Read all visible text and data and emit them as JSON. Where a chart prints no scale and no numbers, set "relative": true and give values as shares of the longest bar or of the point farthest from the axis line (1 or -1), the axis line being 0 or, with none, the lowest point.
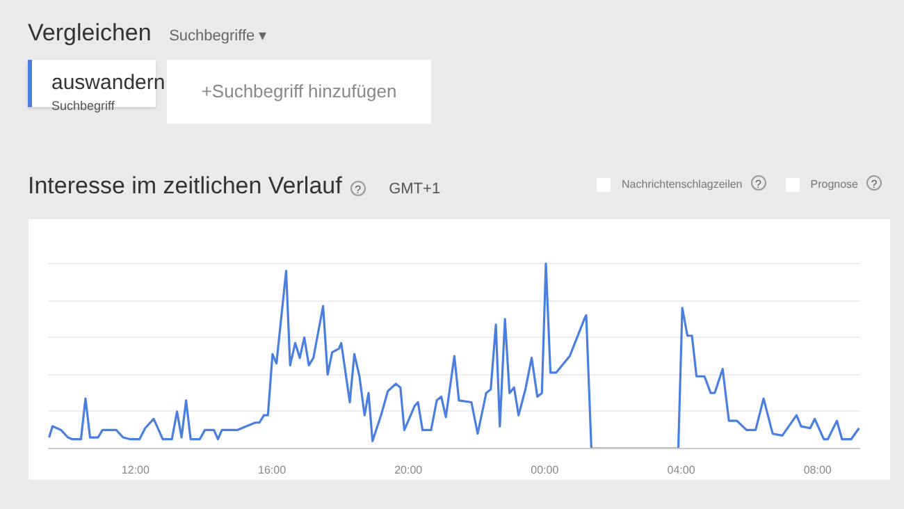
{
  "chart_data": {
    "type": "line",
    "title": "Interesse im zeitlichen Verlauf",
    "subtitle": "GMT+1",
    "annotations": [
      "Vergleichen",
      "Suchbegriffe ▾",
      "Suchbegriff",
      "+Suchbegriff hinzufügen",
      "Nachrichtenschlagzeilen",
      "Prognose",
      "?",
      "?",
      "?"
    ],
    "relative": true,
    "legend": "top left",
    "grid": "y",
    "line_style": "solid",
    "xlim": [
      "2000-01-01T09:26",
      "2000-01-02T09:15"
    ],
    "xticks": [
      {
        "value": "2000-01-01T12:00",
        "label": "12:00"
      },
      {
        "value": "2000-01-01T16:00",
        "label": "16:00"
      },
      {
        "value": "2000-01-01T20:00",
        "label": "20:00"
      },
      {
        "value": "2000-01-02T00:00",
        "label": "00:00"
      },
      {
        "value": "2000-01-02T04:00",
        "label": "04:00"
      },
      {
        "value": "2000-01-02T08:00",
        "label": "08:00"
      }
    ],
    "series": [
      {
        "name": "auswandern",
        "color": "#4a7fe0",
        "x": [
          "2000-01-01T09:28",
          "2000-01-01T09:34",
          "2000-01-01T09:49",
          "2000-01-01T10:01",
          "2000-01-01T10:09",
          "2000-01-01T10:24",
          "2000-01-01T10:32",
          "2000-01-01T10:40",
          "2000-01-01T10:54",
          "2000-01-01T11:02",
          "2000-01-01T11:26",
          "2000-01-01T11:38",
          "2000-01-01T11:51",
          "2000-01-01T12:07",
          "2000-01-01T12:17",
          "2000-01-01T12:32",
          "2000-01-01T12:48",
          "2000-01-01T13:04",
          "2000-01-01T13:13",
          "2000-01-01T13:21",
          "2000-01-01T13:29",
          "2000-01-01T13:37",
          "2000-01-01T13:53",
          "2000-01-01T14:02",
          "2000-01-01T14:18",
          "2000-01-01T14:25",
          "2000-01-01T14:32",
          "2000-01-01T14:59",
          "2000-01-01T15:15",
          "2000-01-01T15:31",
          "2000-01-01T15:38",
          "2000-01-01T15:46",
          "2000-01-01T15:53",
          "2000-01-01T16:01",
          "2000-01-01T16:08",
          "2000-01-01T16:25",
          "2000-01-01T16:32",
          "2000-01-01T16:41",
          "2000-01-01T16:49",
          "2000-01-01T16:57",
          "2000-01-01T17:05",
          "2000-01-01T17:13",
          "2000-01-01T17:30",
          "2000-01-01T17:38",
          "2000-01-01T17:46",
          "2000-01-01T17:58",
          "2000-01-01T18:02",
          "2000-01-01T18:17",
          "2000-01-01T18:25",
          "2000-01-01T18:34",
          "2000-01-01T18:43",
          "2000-01-01T18:50",
          "2000-01-01T18:57",
          "2000-01-01T19:12",
          "2000-01-01T19:24",
          "2000-01-01T19:38",
          "2000-01-01T19:46",
          "2000-01-01T19:53",
          "2000-01-01T20:11",
          "2000-01-01T20:17",
          "2000-01-01T20:25",
          "2000-01-01T20:40",
          "2000-01-01T20:50",
          "2000-01-01T20:58",
          "2000-01-01T21:06",
          "2000-01-01T21:21",
          "2000-01-01T21:29",
          "2000-01-01T21:51",
          "2000-01-01T22:02",
          "2000-01-01T22:17",
          "2000-01-01T22:25",
          "2000-01-01T22:34",
          "2000-01-01T22:41",
          "2000-01-01T22:50",
          "2000-01-01T22:58",
          "2000-01-01T23:06",
          "2000-01-01T23:14",
          "2000-01-01T23:26",
          "2000-01-01T23:37",
          "2000-01-01T23:47",
          "2000-01-01T23:55",
          "2000-01-02T00:02",
          "2000-01-02T00:10",
          "2000-01-02T00:20",
          "2000-01-02T00:44",
          "2000-01-02T01:11",
          "2000-01-02T01:13",
          "2000-01-02T01:22",
          "2000-01-02T03:55",
          "2000-01-02T04:02",
          "2000-01-02T04:11",
          "2000-01-02T04:19",
          "2000-01-02T04:27",
          "2000-01-02T04:41",
          "2000-01-02T04:52",
          "2000-01-02T04:59",
          "2000-01-02T05:13",
          "2000-01-02T05:24",
          "2000-01-02T05:38",
          "2000-01-02T05:55",
          "2000-01-02T06:11",
          "2000-01-02T06:25",
          "2000-01-02T06:41",
          "2000-01-02T06:58",
          "2000-01-02T07:23",
          "2000-01-02T07:31",
          "2000-01-02T07:47",
          "2000-01-02T07:55",
          "2000-01-02T08:11",
          "2000-01-02T08:18",
          "2000-01-02T08:34",
          "2000-01-02T08:43",
          "2000-01-02T08:59",
          "2000-01-02T09:13"
        ],
        "values": [
          0.06,
          0.12,
          0.1,
          0.06,
          0.05,
          0.05,
          0.27,
          0.06,
          0.06,
          0.1,
          0.1,
          0.06,
          0.05,
          0.05,
          0.11,
          0.16,
          0.05,
          0.05,
          0.2,
          0.06,
          0.26,
          0.05,
          0.05,
          0.1,
          0.1,
          0.05,
          0.1,
          0.1,
          0.12,
          0.14,
          0.14,
          0.18,
          0.18,
          0.51,
          0.46,
          0.96,
          0.45,
          0.57,
          0.49,
          0.6,
          0.45,
          0.49,
          0.77,
          0.4,
          0.52,
          0.54,
          0.57,
          0.25,
          0.51,
          0.39,
          0.18,
          0.3,
          0.04,
          0.18,
          0.31,
          0.35,
          0.33,
          0.1,
          0.23,
          0.25,
          0.1,
          0.1,
          0.26,
          0.28,
          0.17,
          0.5,
          0.26,
          0.25,
          0.08,
          0.3,
          0.32,
          0.67,
          0.12,
          0.7,
          0.3,
          0.33,
          0.18,
          0.32,
          0.49,
          0.28,
          0.3,
          1.0,
          0.41,
          0.41,
          0.5,
          0.71,
          0.72,
          0,
          0,
          0.76,
          0.61,
          0.61,
          0.39,
          0.39,
          0.3,
          0.3,
          0.43,
          0.15,
          0.15,
          0.1,
          0.1,
          0.27,
          0.08,
          0.07,
          0.18,
          0.12,
          0.11,
          0.16,
          0.05,
          0.05,
          0.15,
          0.05,
          0.05,
          0.11
        ]
      }
    ]
  }
}
